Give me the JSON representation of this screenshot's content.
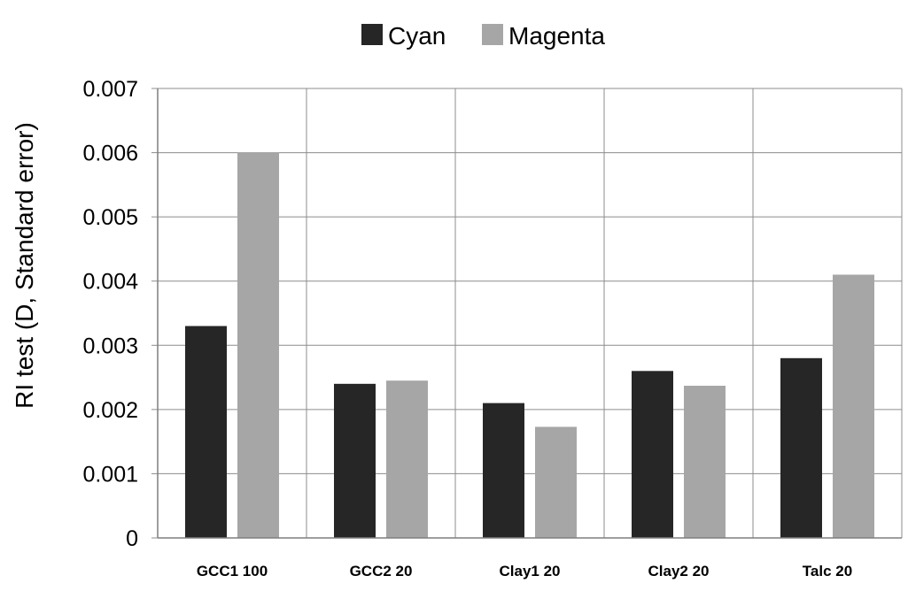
{
  "chart_data": {
    "type": "bar",
    "title": "",
    "xlabel": "",
    "ylabel": "RI test (D, Standard error)",
    "categories": [
      "GCC1 100",
      "GCC2 20",
      "Clay1 20",
      "Clay2 20",
      "Talc 20"
    ],
    "series": [
      {
        "name": "Cyan",
        "color": "#262626",
        "values": [
          0.0033,
          0.0024,
          0.0021,
          0.0026,
          0.0028
        ]
      },
      {
        "name": "Magenta",
        "color": "#a6a6a6",
        "values": [
          0.006,
          0.00245,
          0.00173,
          0.00237,
          0.0041
        ]
      }
    ],
    "ylim": [
      0,
      0.007
    ],
    "yticks": [
      "0",
      "0.001",
      "0.002",
      "0.003",
      "0.004",
      "0.005",
      "0.006",
      "0.007"
    ],
    "ytick_values": [
      0,
      0.001,
      0.002,
      0.003,
      0.004,
      0.005,
      0.006,
      0.007
    ],
    "grid": true,
    "legend_position": "top-center"
  }
}
